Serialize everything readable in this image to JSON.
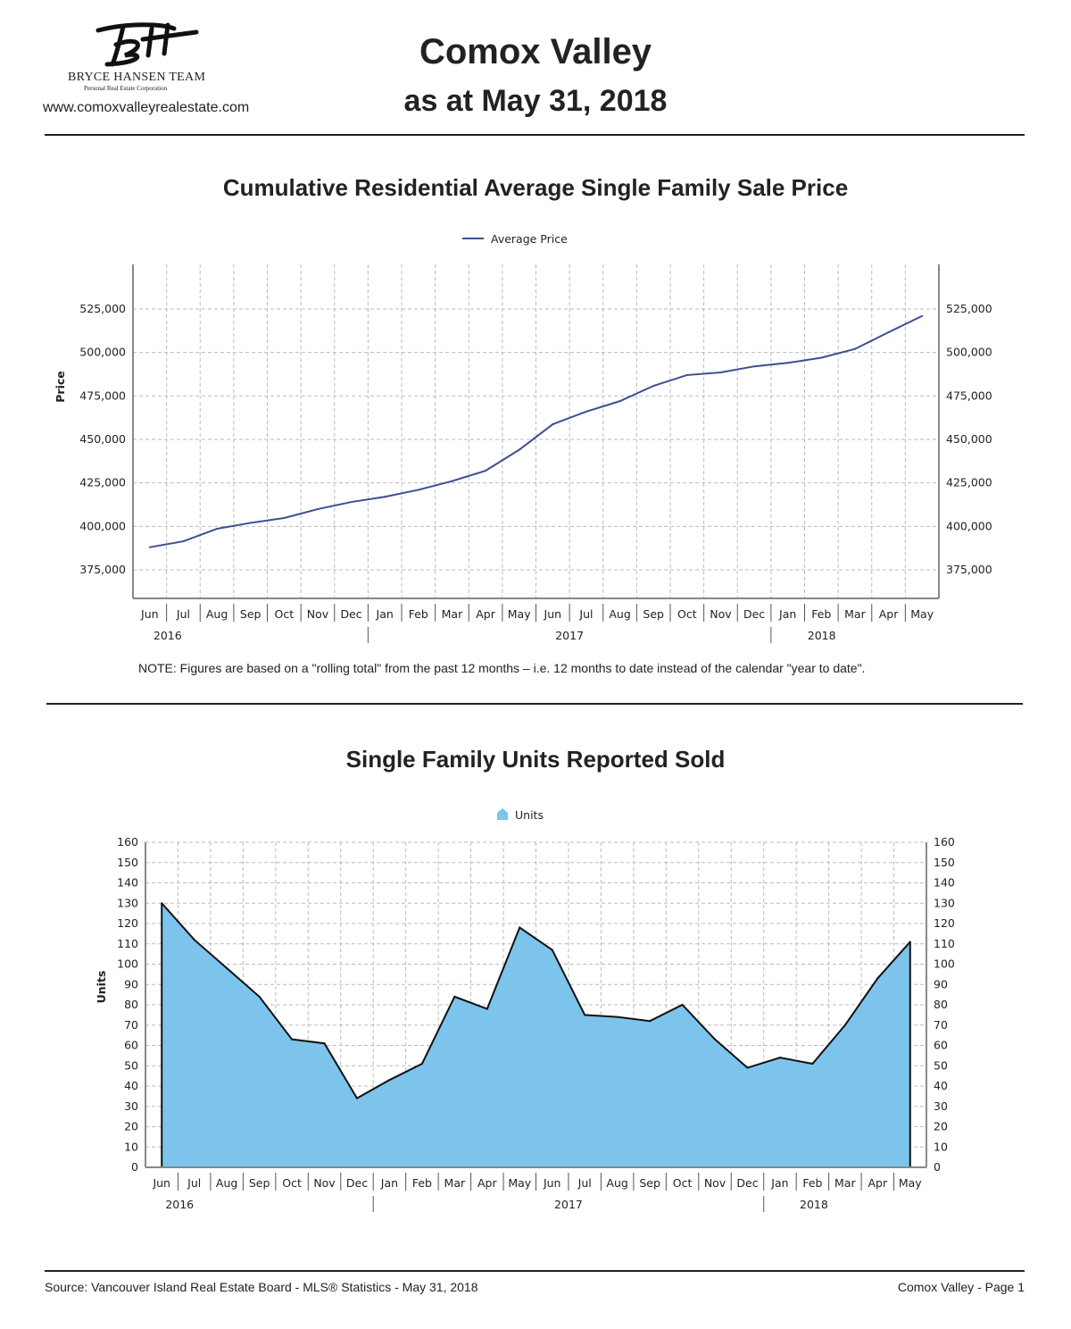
{
  "header": {
    "title": "Comox Valley",
    "subtitle": "as at May 31, 2018",
    "website": "www.comoxvalleyrealestate.com",
    "logo_text": "BH",
    "brand": "BRYCE HANSEN TEAM",
    "brand_sub": "Personal Real Estate Corporation"
  },
  "note": "NOTE:  Figures are based on a \"rolling total\" from the past 12 months – i.e. 12 months to date instead of the calendar \"year to date\".",
  "footer": {
    "source": "Source: Vancouver Island Real Estate Board - MLS® Statistics - May 31, 2018",
    "page": "Comox Valley - Page 1"
  },
  "chart_data": [
    {
      "type": "line",
      "title": "Cumulative Residential Average Single Family Sale Price",
      "ylabel": "Price",
      "xlabel": "",
      "legend": "Average Price",
      "legend_position": "top-center",
      "color": "#3d4f8f",
      "grid": true,
      "ylim": [
        350000,
        550000
      ],
      "yticks": [
        375000,
        400000,
        425000,
        450000,
        475000,
        500000,
        525000
      ],
      "ytick_labels": [
        "375,000",
        "400,000",
        "425,000",
        "450,000",
        "475,000",
        "500,000",
        "525,000"
      ],
      "categories": [
        "Jun",
        "Jul",
        "Aug",
        "Sep",
        "Oct",
        "Nov",
        "Dec",
        "Jan",
        "Feb",
        "Mar",
        "Apr",
        "May",
        "Jun",
        "Jul",
        "Aug",
        "Sep",
        "Oct",
        "Nov",
        "Dec",
        "Jan",
        "Feb",
        "Mar",
        "Apr",
        "May"
      ],
      "years": [
        {
          "label": "2016",
          "start": 0,
          "end": 6
        },
        {
          "label": "2017",
          "start": 7,
          "end": 18
        },
        {
          "label": "2018",
          "start": 19,
          "end": 23
        }
      ],
      "values": [
        388000,
        391400,
        398600,
        402000,
        404800,
        409900,
        414000,
        417000,
        421000,
        426000,
        432000,
        444000,
        458700,
        466000,
        472000,
        480800,
        487000,
        488500,
        492000,
        494000,
        497000,
        502000,
        511600,
        521000
      ]
    },
    {
      "type": "area",
      "title": "Single Family Units Reported Sold",
      "ylabel": "Units",
      "xlabel": "",
      "legend": "Units",
      "legend_position": "top-center",
      "color": "#7cc4ec",
      "grid": true,
      "ylim": [
        0,
        160
      ],
      "yticks": [
        0,
        10,
        20,
        30,
        40,
        50,
        60,
        70,
        80,
        90,
        100,
        110,
        120,
        130,
        140,
        150,
        160
      ],
      "categories": [
        "Jun",
        "Jul",
        "Aug",
        "Sep",
        "Oct",
        "Nov",
        "Dec",
        "Jan",
        "Feb",
        "Mar",
        "Apr",
        "May",
        "Jun",
        "Jul",
        "Aug",
        "Sep",
        "Oct",
        "Nov",
        "Dec",
        "Jan",
        "Feb",
        "Mar",
        "Apr",
        "May"
      ],
      "years": [
        {
          "label": "2016",
          "start": 0,
          "end": 6
        },
        {
          "label": "2017",
          "start": 7,
          "end": 18
        },
        {
          "label": "2018",
          "start": 19,
          "end": 23
        }
      ],
      "values": [
        130,
        112,
        98,
        84,
        63,
        61,
        34,
        43,
        51,
        84,
        78,
        118,
        107,
        75,
        74,
        72,
        80,
        63,
        49,
        54,
        51,
        70,
        93,
        111
      ]
    }
  ]
}
